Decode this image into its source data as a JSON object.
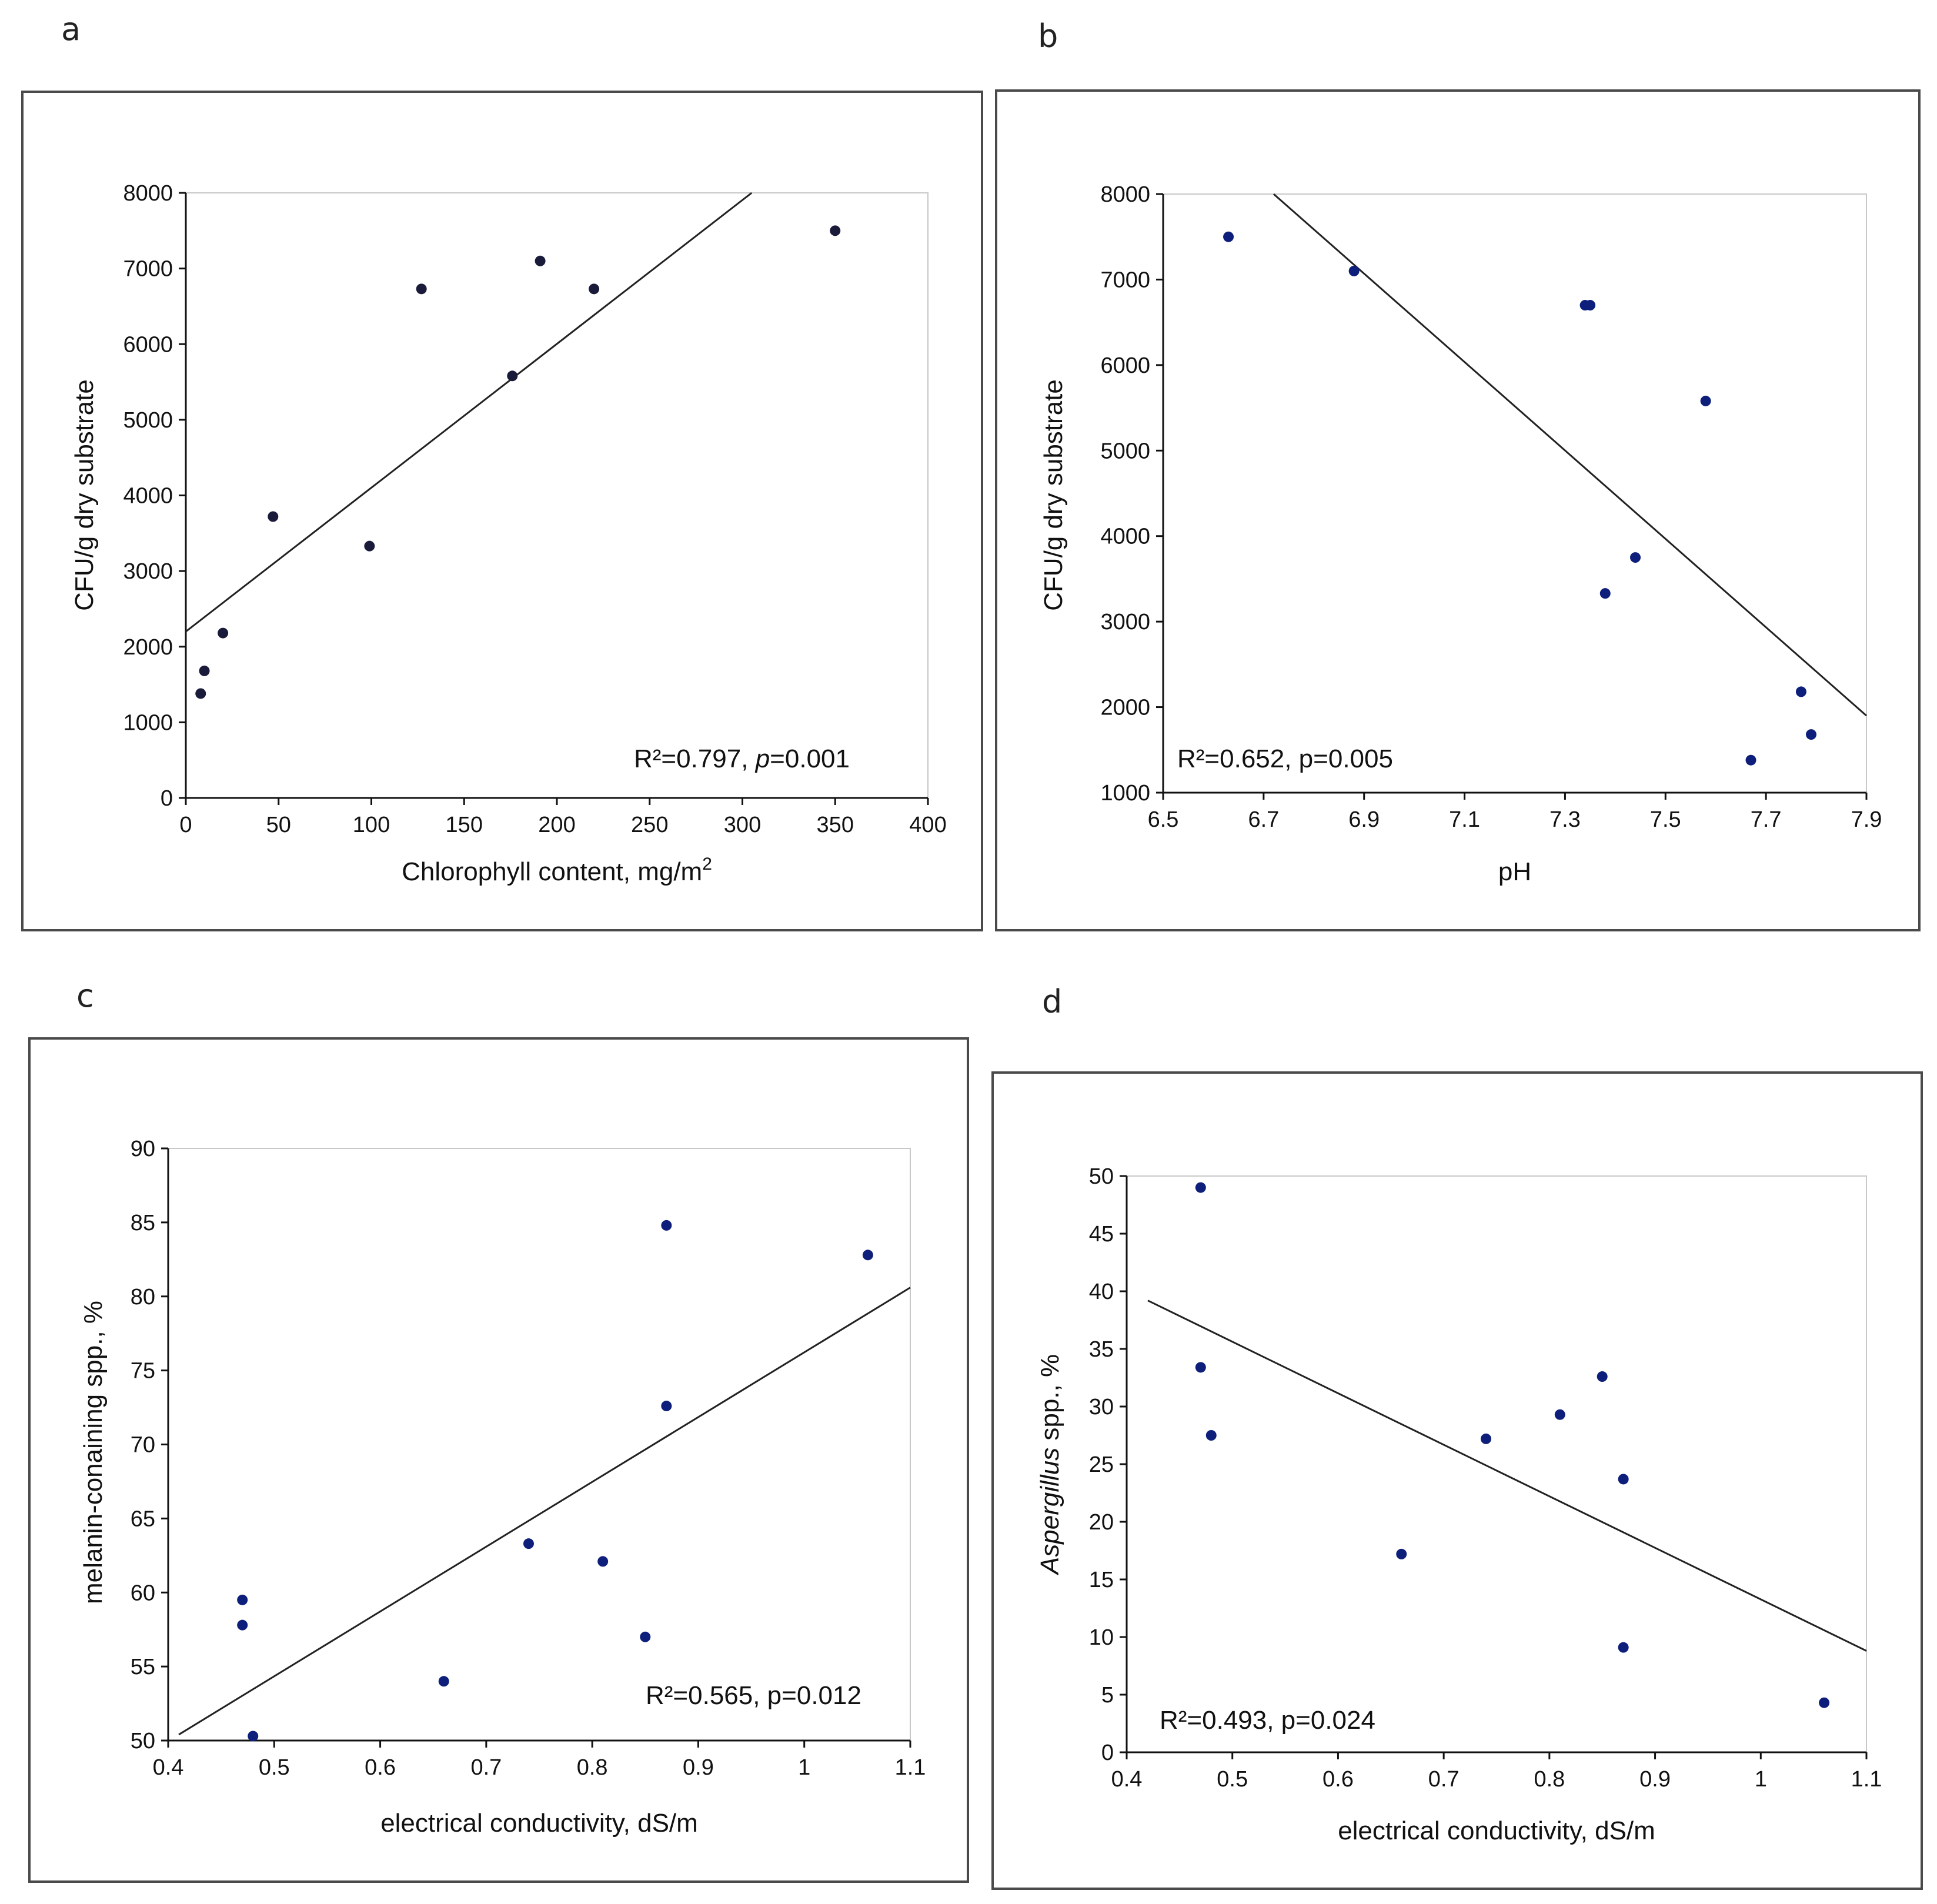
{
  "chart_data": [
    {
      "panel": "a",
      "type": "scatter",
      "x": [
        8,
        10,
        20,
        47,
        99,
        127,
        176,
        191,
        220,
        350
      ],
      "y": [
        1380,
        1680,
        2180,
        3720,
        3330,
        6730,
        5580,
        7100,
        6730,
        7500
      ],
      "trendline": {
        "x": [
          0,
          305
        ],
        "y": [
          2200,
          8000
        ]
      },
      "xlim": [
        0,
        400
      ],
      "ylim": [
        0,
        8000
      ],
      "xticks": [
        "0",
        "50",
        "100",
        "150",
        "200",
        "250",
        "300",
        "350",
        "400"
      ],
      "yticks": [
        "0",
        "1000",
        "2000",
        "3000",
        "4000",
        "5000",
        "6000",
        "7000",
        "8000"
      ],
      "xlabel": "Chlorophyll content, mg/m",
      "xlabel_sup": "2",
      "ylabel": "CFU/g dry substrate",
      "annotation": {
        "text": "R²=0.797, ",
        "p_italic": "p",
        "p_value": "=0.001"
      }
    },
    {
      "panel": "b",
      "type": "scatter",
      "x": [
        6.63,
        6.88,
        7.34,
        7.35,
        7.38,
        7.44,
        7.58,
        7.67,
        7.77,
        7.79
      ],
      "y": [
        7500,
        7100,
        6700,
        6700,
        3330,
        3750,
        5580,
        1380,
        2180,
        1680
      ],
      "trendline": {
        "x": [
          6.72,
          7.9
        ],
        "y": [
          8000,
          1900
        ]
      },
      "xlim": [
        6.5,
        7.9
      ],
      "ylim": [
        1000,
        8000
      ],
      "xticks": [
        "6.5",
        "6.7",
        "6.9",
        "7.1",
        "7.3",
        "7.5",
        "7.7",
        "7.9"
      ],
      "yticks": [
        "1000",
        "2000",
        "3000",
        "4000",
        "5000",
        "6000",
        "7000",
        "8000"
      ],
      "xlabel": "pH",
      "ylabel": "CFU/g dry substrate",
      "annotation": {
        "text": "R²=0.652, p=0.005"
      }
    },
    {
      "panel": "c",
      "type": "scatter",
      "x": [
        0.47,
        0.47,
        0.48,
        0.66,
        0.74,
        0.81,
        0.85,
        0.87,
        0.87,
        1.06
      ],
      "y": [
        59.5,
        57.8,
        50.3,
        54,
        63.3,
        62.1,
        57,
        84.8,
        72.6,
        82.8
      ],
      "trendline": {
        "x": [
          0.41,
          1.1
        ],
        "y": [
          50.4,
          80.6
        ]
      },
      "xlim": [
        0.4,
        1.1
      ],
      "ylim": [
        50,
        90
      ],
      "xticks": [
        "0.4",
        "0.5",
        "0.6",
        "0.7",
        "0.8",
        "0.9",
        "1",
        "1.1"
      ],
      "yticks": [
        "50",
        "55",
        "60",
        "65",
        "70",
        "75",
        "80",
        "85",
        "90"
      ],
      "xlabel": "electrical conductivity, dS/m",
      "ylabel": "melanin-conaining spp., %",
      "annotation": {
        "text": "R²=0.565, p=0.012"
      }
    },
    {
      "panel": "d",
      "type": "scatter",
      "x": [
        0.47,
        0.47,
        0.48,
        0.66,
        0.74,
        0.81,
        0.85,
        0.87,
        0.87,
        1.06
      ],
      "y": [
        49,
        33.4,
        27.5,
        17.2,
        27.2,
        29.3,
        32.6,
        23.7,
        9.1,
        4.3
      ],
      "trendline": {
        "x": [
          0.42,
          1.1
        ],
        "y": [
          39.2,
          8.8
        ]
      },
      "xlim": [
        0.4,
        1.1
      ],
      "ylim": [
        0,
        50
      ],
      "xticks": [
        "0.4",
        "0.5",
        "0.6",
        "0.7",
        "0.8",
        "0.9",
        "1",
        "1.1"
      ],
      "yticks": [
        "0",
        "5",
        "10",
        "15",
        "20",
        "25",
        "30",
        "35",
        "40",
        "45",
        "50"
      ],
      "xlabel": "electrical conductivity, dS/m",
      "ylabel_italic": "Aspergillus",
      "ylabel": " spp., %",
      "annotation": {
        "text": "R²=0.493, p=0.024"
      }
    }
  ],
  "colors": {
    "point_a": "#1a1a3a",
    "point": "#0d1f7a",
    "trend": "#222222",
    "frame": "#4a4a4a",
    "plot_border": "#c8c8c8"
  }
}
